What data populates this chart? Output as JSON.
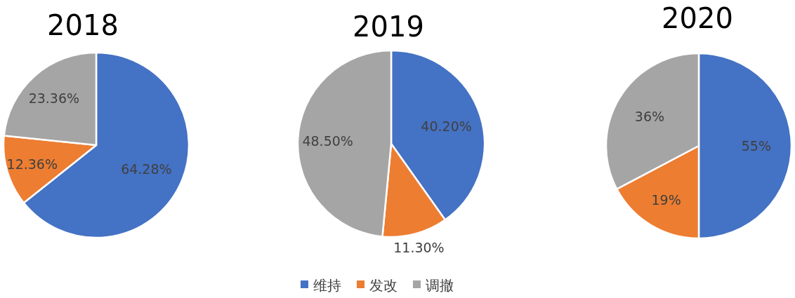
{
  "chart_data": [
    {
      "type": "pie",
      "title": "2018",
      "categories": [
        null,
        null,
        null
      ],
      "values": [
        64.28,
        12.36,
        23.36
      ],
      "colors": [
        "#4472c4",
        "#ed7d31",
        "#a5a5a5"
      ],
      "value_labels": [
        "64.28%",
        "12.36%",
        "23.36%"
      ],
      "legend": false
    },
    {
      "type": "pie",
      "title": "2019",
      "categories": [
        "维持",
        "发改",
        "调撤"
      ],
      "values": [
        40.2,
        11.3,
        48.5
      ],
      "colors": [
        "#4472c4",
        "#ed7d31",
        "#a5a5a5"
      ],
      "value_labels": [
        "40.20%",
        "11.30%",
        "48.50%"
      ],
      "legend": "bottom"
    },
    {
      "type": "pie",
      "title": "2020",
      "categories": [
        null,
        null,
        null
      ],
      "values": [
        55,
        19,
        36
      ],
      "colors": [
        "#4472c4",
        "#ed7d31",
        "#a5a5a5"
      ],
      "value_labels": [
        "55%",
        "19%",
        "36%"
      ],
      "legend": false
    }
  ]
}
